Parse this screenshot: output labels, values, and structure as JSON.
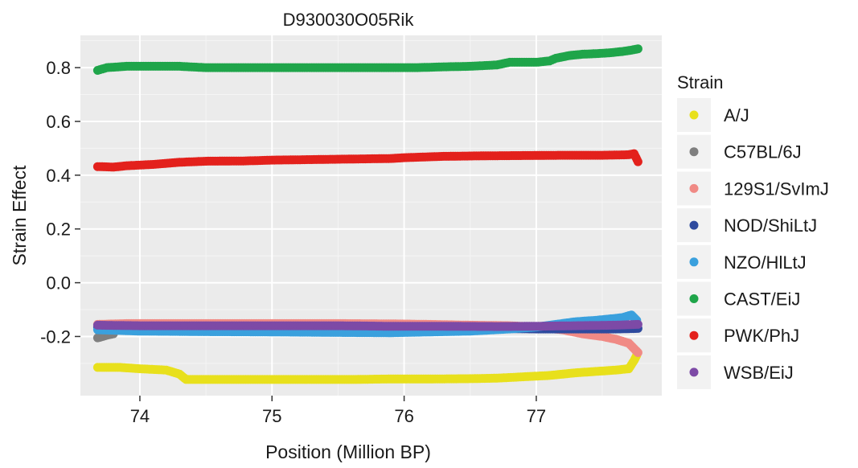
{
  "chart_data": {
    "type": "scatter",
    "title": "D930030O05Rik",
    "xlabel": "Position (Million BP)",
    "ylabel": "Strain Effect",
    "xlim": [
      73.55,
      77.95
    ],
    "ylim": [
      -0.42,
      0.92
    ],
    "x_ticks": [
      74,
      75,
      76,
      77
    ],
    "x_tick_labels": [
      "74",
      "75",
      "76",
      "77"
    ],
    "y_ticks": [
      0.8,
      0.6,
      0.4,
      0.2,
      0.0,
      -0.2
    ],
    "y_tick_labels": [
      "0.8",
      "0.6",
      "0.4",
      "0.2",
      "0.0",
      "-0.2"
    ],
    "grid": true,
    "legend_position": "right",
    "legend_title": "Strain",
    "panel_background": "#ebebeb",
    "series": [
      {
        "name": "A/J",
        "color": "#e8e01c",
        "points": [
          [
            73.68,
            -0.315
          ],
          [
            73.85,
            -0.315
          ],
          [
            74.0,
            -0.32
          ],
          [
            74.2,
            -0.325
          ],
          [
            74.3,
            -0.34
          ],
          [
            74.35,
            -0.36
          ],
          [
            74.5,
            -0.36
          ],
          [
            74.8,
            -0.36
          ],
          [
            75.0,
            -0.36
          ],
          [
            75.3,
            -0.36
          ],
          [
            75.6,
            -0.36
          ],
          [
            75.9,
            -0.358
          ],
          [
            76.2,
            -0.358
          ],
          [
            76.5,
            -0.357
          ],
          [
            76.7,
            -0.355
          ],
          [
            76.9,
            -0.35
          ],
          [
            77.1,
            -0.345
          ],
          [
            77.2,
            -0.34
          ],
          [
            77.3,
            -0.335
          ],
          [
            77.45,
            -0.33
          ],
          [
            77.6,
            -0.325
          ],
          [
            77.7,
            -0.32
          ],
          [
            77.74,
            -0.29
          ],
          [
            77.76,
            -0.27
          ]
        ]
      },
      {
        "name": "C57BL/6J",
        "color": "#7f7f7f",
        "points": [
          [
            73.68,
            -0.205
          ],
          [
            73.72,
            -0.2
          ],
          [
            73.75,
            -0.195
          ],
          [
            73.8,
            -0.19
          ]
        ]
      },
      {
        "name": "129S1/SvImJ",
        "color": "#f08a85",
        "points": [
          [
            73.68,
            -0.155
          ],
          [
            73.9,
            -0.152
          ],
          [
            74.2,
            -0.152
          ],
          [
            74.5,
            -0.152
          ],
          [
            74.9,
            -0.152
          ],
          [
            75.2,
            -0.152
          ],
          [
            75.5,
            -0.152
          ],
          [
            75.9,
            -0.153
          ],
          [
            76.2,
            -0.155
          ],
          [
            76.5,
            -0.158
          ],
          [
            76.8,
            -0.16
          ],
          [
            77.0,
            -0.165
          ],
          [
            77.2,
            -0.175
          ],
          [
            77.35,
            -0.19
          ],
          [
            77.5,
            -0.2
          ],
          [
            77.6,
            -0.21
          ],
          [
            77.7,
            -0.225
          ],
          [
            77.74,
            -0.245
          ],
          [
            77.77,
            -0.26
          ]
        ]
      },
      {
        "name": "NOD/ShiLtJ",
        "color": "#2e4a9e",
        "points": [
          [
            73.68,
            -0.165
          ],
          [
            74.0,
            -0.167
          ],
          [
            74.5,
            -0.168
          ],
          [
            75.0,
            -0.168
          ],
          [
            75.5,
            -0.168
          ],
          [
            75.9,
            -0.168
          ],
          [
            76.3,
            -0.168
          ],
          [
            76.7,
            -0.17
          ],
          [
            77.0,
            -0.172
          ],
          [
            77.3,
            -0.172
          ],
          [
            77.6,
            -0.172
          ],
          [
            77.77,
            -0.17
          ]
        ]
      },
      {
        "name": "NZO/HlLtJ",
        "color": "#3aa0dd",
        "points": [
          [
            73.68,
            -0.175
          ],
          [
            74.0,
            -0.18
          ],
          [
            74.5,
            -0.182
          ],
          [
            75.0,
            -0.183
          ],
          [
            75.5,
            -0.185
          ],
          [
            75.9,
            -0.186
          ],
          [
            76.2,
            -0.183
          ],
          [
            76.5,
            -0.18
          ],
          [
            76.8,
            -0.172
          ],
          [
            77.0,
            -0.165
          ],
          [
            77.15,
            -0.155
          ],
          [
            77.3,
            -0.145
          ],
          [
            77.45,
            -0.14
          ],
          [
            77.55,
            -0.135
          ],
          [
            77.65,
            -0.13
          ],
          [
            77.72,
            -0.12
          ],
          [
            77.76,
            -0.14
          ]
        ]
      },
      {
        "name": "CAST/EiJ",
        "color": "#1fa54a",
        "points": [
          [
            73.68,
            0.79
          ],
          [
            73.75,
            0.8
          ],
          [
            73.9,
            0.805
          ],
          [
            74.1,
            0.805
          ],
          [
            74.3,
            0.805
          ],
          [
            74.5,
            0.8
          ],
          [
            74.8,
            0.8
          ],
          [
            75.0,
            0.8
          ],
          [
            75.3,
            0.8
          ],
          [
            75.6,
            0.8
          ],
          [
            75.9,
            0.8
          ],
          [
            76.1,
            0.8
          ],
          [
            76.3,
            0.803
          ],
          [
            76.5,
            0.805
          ],
          [
            76.7,
            0.81
          ],
          [
            76.8,
            0.82
          ],
          [
            77.0,
            0.82
          ],
          [
            77.1,
            0.825
          ],
          [
            77.15,
            0.835
          ],
          [
            77.25,
            0.845
          ],
          [
            77.35,
            0.85
          ],
          [
            77.45,
            0.852
          ],
          [
            77.55,
            0.855
          ],
          [
            77.65,
            0.86
          ],
          [
            77.72,
            0.865
          ],
          [
            77.77,
            0.87
          ]
        ]
      },
      {
        "name": "PWK/PhJ",
        "color": "#e3211c",
        "points": [
          [
            73.68,
            0.432
          ],
          [
            73.8,
            0.43
          ],
          [
            73.9,
            0.435
          ],
          [
            74.1,
            0.44
          ],
          [
            74.3,
            0.448
          ],
          [
            74.5,
            0.452
          ],
          [
            74.8,
            0.453
          ],
          [
            75.0,
            0.456
          ],
          [
            75.3,
            0.458
          ],
          [
            75.6,
            0.46
          ],
          [
            75.9,
            0.462
          ],
          [
            76.0,
            0.465
          ],
          [
            76.3,
            0.47
          ],
          [
            76.6,
            0.472
          ],
          [
            76.9,
            0.473
          ],
          [
            77.2,
            0.474
          ],
          [
            77.5,
            0.474
          ],
          [
            77.7,
            0.476
          ],
          [
            77.74,
            0.48
          ],
          [
            77.77,
            0.45
          ]
        ]
      },
      {
        "name": "WSB/EiJ",
        "color": "#7d4aa6",
        "points": [
          [
            73.68,
            -0.158
          ],
          [
            74.0,
            -0.16
          ],
          [
            74.5,
            -0.16
          ],
          [
            75.0,
            -0.16
          ],
          [
            75.5,
            -0.16
          ],
          [
            75.9,
            -0.162
          ],
          [
            76.3,
            -0.162
          ],
          [
            76.7,
            -0.163
          ],
          [
            77.0,
            -0.162
          ],
          [
            77.3,
            -0.16
          ],
          [
            77.6,
            -0.158
          ],
          [
            77.77,
            -0.155
          ]
        ]
      }
    ]
  }
}
